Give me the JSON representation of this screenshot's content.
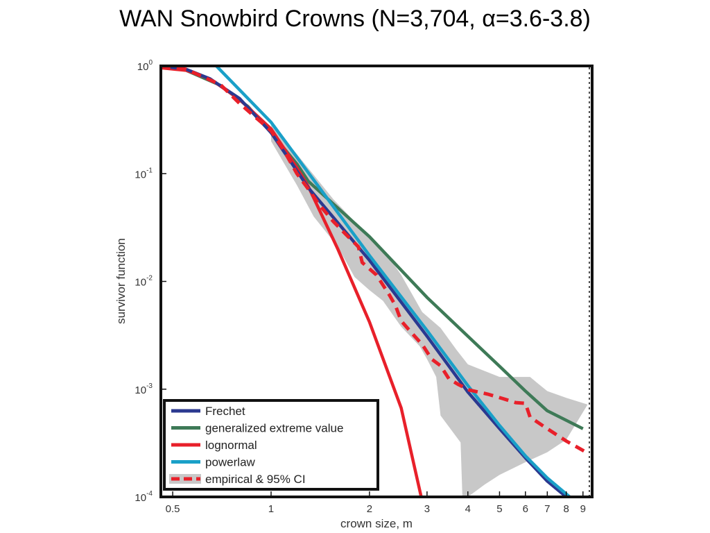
{
  "chart_data": {
    "type": "line",
    "title": "WAN Snowbird Crowns (N=3,704, α=3.6-3.8)",
    "xlabel": "crown size, m",
    "ylabel": "survivor function",
    "xscale": "log",
    "yscale": "log",
    "xlim": [
      0.46,
      9.6
    ],
    "ylim": [
      0.0001,
      1
    ],
    "xticks": [
      {
        "value": 0.5,
        "label": "0.5"
      },
      {
        "value": 1,
        "label": "1"
      },
      {
        "value": 2,
        "label": "2"
      },
      {
        "value": 3,
        "label": "3"
      },
      {
        "value": 4,
        "label": "4"
      },
      {
        "value": 5,
        "label": "5"
      },
      {
        "value": 6,
        "label": "6"
      },
      {
        "value": 7,
        "label": "7"
      },
      {
        "value": 8,
        "label": "8"
      },
      {
        "value": 9,
        "label": "9"
      }
    ],
    "yticks": [
      {
        "value": 1,
        "base": "10",
        "exp": "0"
      },
      {
        "value": 0.1,
        "base": "10",
        "exp": "-1"
      },
      {
        "value": 0.01,
        "base": "10",
        "exp": "-2"
      },
      {
        "value": 0.001,
        "base": "10",
        "exp": "-3"
      },
      {
        "value": 0.0001,
        "base": "10",
        "exp": "-4"
      }
    ],
    "legend_position": "bottom-left",
    "grid": false,
    "series": [
      {
        "name": "Frechet",
        "color": "#2b3990",
        "dash": "solid",
        "points": [
          [
            0.46,
            1.0
          ],
          [
            0.55,
            0.93
          ],
          [
            0.65,
            0.76
          ],
          [
            0.8,
            0.5
          ],
          [
            1.0,
            0.24
          ],
          [
            1.3,
            0.074
          ],
          [
            2.0,
            0.0157
          ],
          [
            3.0,
            0.0031
          ],
          [
            4.0,
            0.00094
          ],
          [
            5.0,
            0.00043
          ],
          [
            6.0,
            0.00023
          ],
          [
            7.0,
            0.00014
          ],
          [
            8.0,
            0.0001
          ]
        ]
      },
      {
        "name": "generalized extreme value",
        "color": "#3e7a57",
        "dash": "solid",
        "points": [
          [
            0.46,
            1.0
          ],
          [
            0.55,
            0.91
          ],
          [
            0.7,
            0.66
          ],
          [
            0.85,
            0.42
          ],
          [
            1.0,
            0.24
          ],
          [
            1.2,
            0.123
          ],
          [
            1.3,
            0.085
          ],
          [
            2.0,
            0.026
          ],
          [
            3.0,
            0.0071
          ],
          [
            4.0,
            0.0031
          ],
          [
            5.0,
            0.00163
          ],
          [
            6.0,
            0.00096
          ],
          [
            7.0,
            0.00063
          ],
          [
            9.0,
            0.00043
          ]
        ]
      },
      {
        "name": "lognormal",
        "color": "#e8202a",
        "dash": "solid",
        "points": [
          [
            0.46,
            0.96
          ],
          [
            0.55,
            0.91
          ],
          [
            0.65,
            0.76
          ],
          [
            0.8,
            0.49
          ],
          [
            1.0,
            0.26
          ],
          [
            1.2,
            0.113
          ],
          [
            1.3,
            0.076
          ],
          [
            1.6,
            0.02
          ],
          [
            2.0,
            0.0042
          ],
          [
            2.5,
            0.00067
          ],
          [
            2.88,
            0.0001
          ]
        ]
      },
      {
        "name": "powerlaw",
        "color": "#1aa0c8",
        "dash": "solid",
        "points": [
          [
            0.68,
            1.0
          ],
          [
            1.0,
            0.3
          ],
          [
            2.0,
            0.0174
          ],
          [
            3.0,
            0.0035
          ],
          [
            4.0,
            0.00108
          ],
          [
            5.0,
            0.00046
          ],
          [
            6.0,
            0.00024
          ],
          [
            7.0,
            0.00015
          ],
          [
            8.2,
            0.0001
          ]
        ]
      },
      {
        "name": "empirical & 95% CI",
        "color": "#e8202a",
        "dash": "dashed",
        "points": [
          [
            0.46,
            1.0
          ],
          [
            0.55,
            0.93
          ],
          [
            0.7,
            0.67
          ],
          [
            0.8,
            0.45
          ],
          [
            1.0,
            0.25
          ],
          [
            1.1,
            0.16
          ],
          [
            1.2,
            0.1
          ],
          [
            1.3,
            0.072
          ],
          [
            1.4,
            0.052
          ],
          [
            1.55,
            0.036
          ],
          [
            1.7,
            0.027
          ],
          [
            1.85,
            0.021
          ],
          [
            1.9,
            0.015
          ],
          [
            2.1,
            0.0115
          ],
          [
            2.3,
            0.0075
          ],
          [
            2.4,
            0.006
          ],
          [
            2.5,
            0.0043
          ],
          [
            2.7,
            0.0033
          ],
          [
            2.9,
            0.0026
          ],
          [
            3.1,
            0.0019
          ],
          [
            3.3,
            0.00165
          ],
          [
            3.5,
            0.00125
          ],
          [
            3.75,
            0.0011
          ],
          [
            4.05,
            0.00098
          ],
          [
            4.6,
            0.0009
          ],
          [
            5.1,
            0.00082
          ],
          [
            5.6,
            0.00075
          ],
          [
            6.0,
            0.00074
          ],
          [
            6.2,
            0.00055
          ],
          [
            7.0,
            0.00043
          ],
          [
            8.0,
            0.00033
          ],
          [
            9.2,
            0.00026
          ]
        ]
      }
    ],
    "ci_band": {
      "color": "#c8c8c8",
      "upper": [
        [
          1.0,
          0.3
        ],
        [
          1.25,
          0.13
        ],
        [
          1.55,
          0.058
        ],
        [
          1.8,
          0.036
        ],
        [
          2.2,
          0.02
        ],
        [
          2.5,
          0.0115
        ],
        [
          2.9,
          0.0052
        ],
        [
          3.3,
          0.0037
        ],
        [
          3.7,
          0.0023
        ],
        [
          4.0,
          0.0017
        ],
        [
          5.0,
          0.0013
        ],
        [
          6.2,
          0.0013
        ],
        [
          6.5,
          0.00115
        ],
        [
          7.0,
          0.00096
        ],
        [
          8.0,
          0.00083
        ],
        [
          9.3,
          0.00072
        ]
      ],
      "lower": [
        [
          9.3,
          0.00072
        ],
        [
          8.0,
          0.00034
        ],
        [
          7.0,
          0.00026
        ],
        [
          6.0,
          0.00021
        ],
        [
          5.0,
          0.00016
        ],
        [
          4.5,
          0.00013
        ],
        [
          4.0,
          0.0001
        ],
        [
          3.85,
          0.0001
        ],
        [
          3.8,
          0.00032
        ],
        [
          3.3,
          0.00057
        ],
        [
          3.2,
          0.0013
        ],
        [
          3.0,
          0.0019
        ],
        [
          2.85,
          0.0025
        ],
        [
          2.5,
          0.0038
        ],
        [
          2.2,
          0.0066
        ],
        [
          2.0,
          0.0083
        ],
        [
          1.8,
          0.011
        ],
        [
          1.6,
          0.021
        ],
        [
          1.35,
          0.04
        ],
        [
          1.2,
          0.078
        ],
        [
          1.0,
          0.2
        ]
      ]
    }
  }
}
